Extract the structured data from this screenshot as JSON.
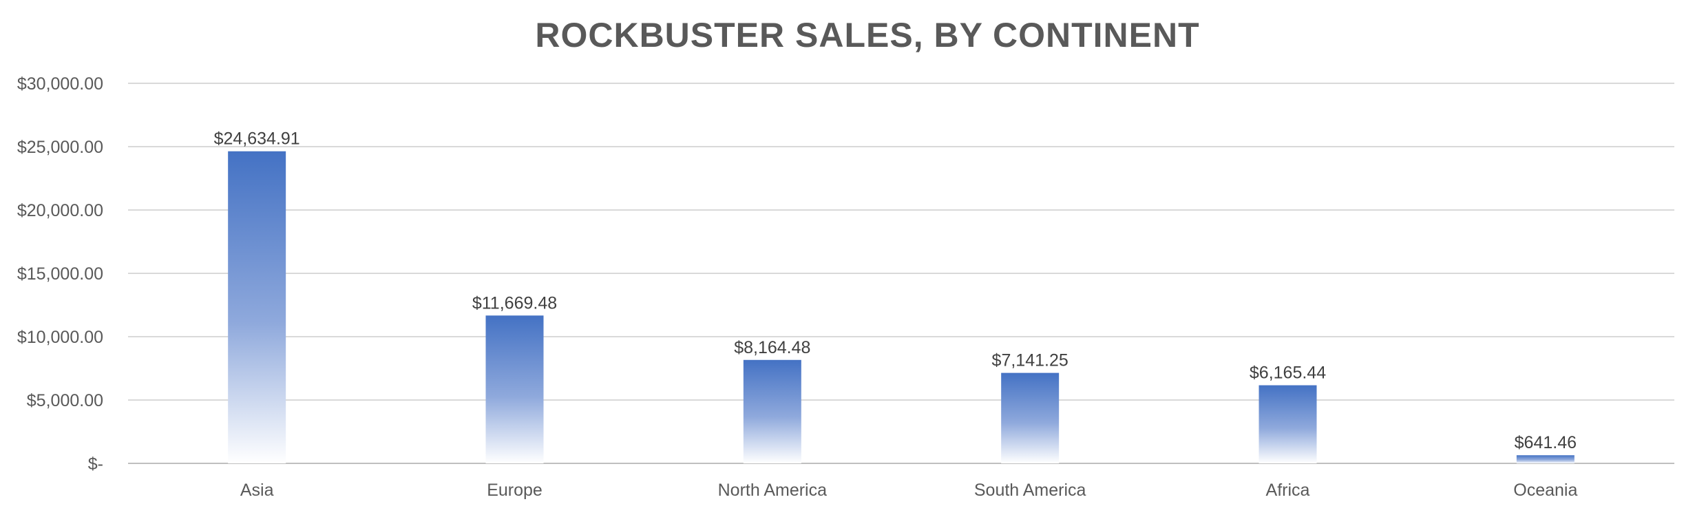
{
  "chart_data": {
    "type": "bar",
    "title": "ROCKBUSTER SALES, BY CONTINENT",
    "xlabel": "",
    "ylabel": "",
    "categories": [
      "Asia",
      "Europe",
      "North America",
      "South America",
      "Africa",
      "Oceania"
    ],
    "values": [
      24634.91,
      11669.48,
      8164.48,
      7141.25,
      6165.44,
      641.46
    ],
    "data_labels": [
      "$24,634.91",
      "$11,669.48",
      "$8,164.48",
      "$7,141.25",
      "$6,165.44",
      "$641.46"
    ],
    "ylim": [
      0,
      30000
    ],
    "yticks": [
      0,
      5000,
      10000,
      15000,
      20000,
      25000,
      30000
    ],
    "ytick_labels": [
      "$-",
      "$5,000.00",
      "$10,000.00",
      "$15,000.00",
      "$20,000.00",
      "$25,000.00",
      "$30,000.00"
    ],
    "grid": true,
    "legend": "none",
    "colors": {
      "bar_top": "#4472c4",
      "bar_mid": "#8fa9dc",
      "bar_bottom": "#ffffff"
    }
  }
}
